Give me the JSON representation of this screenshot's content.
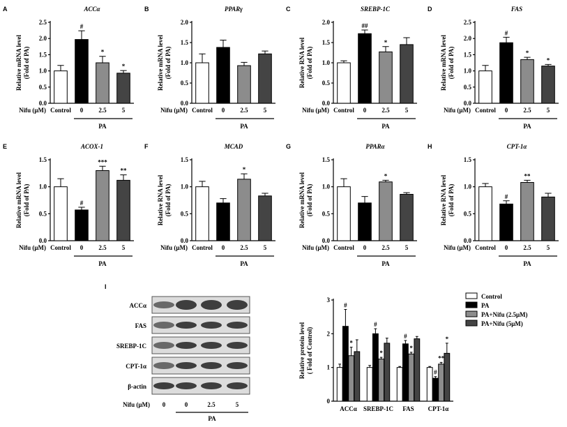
{
  "chart_data": [
    {
      "type": "bar",
      "panel": "A",
      "title": "ACCα",
      "y_label": [
        "Relative mRNA level",
        "(Fold of PA)"
      ],
      "x_label": "Nifu (μM)",
      "group_label": "PA",
      "categories": [
        "Control",
        "0",
        "2.5",
        "5"
      ],
      "values": [
        1.0,
        1.97,
        1.25,
        0.93
      ],
      "errors": [
        0.17,
        0.27,
        0.2,
        0.08
      ],
      "annotations": [
        null,
        "#",
        "*",
        "*"
      ],
      "colors": [
        "#ffffff",
        "#000000",
        "#8c8c8c",
        "#444444"
      ],
      "ylim": [
        0,
        2.5
      ],
      "yticks": [
        {
          "value": 0,
          "label": "0.0"
        },
        0.5,
        {
          "value": 1,
          "label": "1.0"
        },
        1.5,
        {
          "value": 2,
          "label": "2.0"
        },
        2.5
      ]
    },
    {
      "type": "bar",
      "panel": "B",
      "title": "PPARγ",
      "y_label": [
        "Relative mRNA level",
        "(Fold of PA)"
      ],
      "x_label": "Nifu (μM)",
      "group_label": "PA",
      "categories": [
        "Control",
        "0",
        "2.5",
        "5"
      ],
      "values": [
        1.0,
        1.38,
        0.93,
        1.22
      ],
      "errors": [
        0.22,
        0.18,
        0.08,
        0.07
      ],
      "annotations": [
        null,
        null,
        null,
        null
      ],
      "colors": [
        "#ffffff",
        "#000000",
        "#8c8c8c",
        "#444444"
      ],
      "ylim": [
        0,
        2
      ],
      "yticks": [
        {
          "value": 0,
          "label": "0.0"
        },
        0.5,
        {
          "value": 1,
          "label": "1.0"
        },
        1.5,
        {
          "value": 2,
          "label": "2.0"
        }
      ]
    },
    {
      "type": "bar",
      "panel": "C",
      "title": "SREBP-1C",
      "y_label": [
        "Relative RNA level",
        "(Fold of PA)"
      ],
      "x_label": "Nifu (μM)",
      "group_label": "PA",
      "categories": [
        "Control",
        "0",
        "2.5",
        "5"
      ],
      "values": [
        1.0,
        1.72,
        1.27,
        1.45
      ],
      "errors": [
        0.05,
        0.09,
        0.13,
        0.17
      ],
      "annotations": [
        null,
        "##",
        "*",
        null
      ],
      "colors": [
        "#ffffff",
        "#000000",
        "#8c8c8c",
        "#444444"
      ],
      "ylim": [
        0,
        2
      ],
      "yticks": [
        {
          "value": 0,
          "label": "0.0"
        },
        0.5,
        {
          "value": 1,
          "label": "1.0"
        },
        1.5,
        {
          "value": 2,
          "label": "2.0"
        }
      ]
    },
    {
      "type": "bar",
      "panel": "D",
      "title": "FAS",
      "y_label": [
        "Relative mRNA level",
        "(Fold of PA)"
      ],
      "x_label": "Nifu (μM)",
      "group_label": "PA",
      "categories": [
        "Control",
        "0",
        "2.5",
        "5"
      ],
      "values": [
        1.0,
        1.87,
        1.35,
        1.15
      ],
      "errors": [
        0.17,
        0.17,
        0.07,
        0.05
      ],
      "annotations": [
        null,
        "#",
        "*",
        "*"
      ],
      "colors": [
        "#ffffff",
        "#000000",
        "#8c8c8c",
        "#444444"
      ],
      "ylim": [
        0,
        2.5
      ],
      "yticks": [
        {
          "value": 0,
          "label": "0.0"
        },
        0.5,
        {
          "value": 1,
          "label": "1.0"
        },
        1.5,
        {
          "value": 2,
          "label": "2.0"
        },
        2.5
      ]
    },
    {
      "type": "bar",
      "panel": "E",
      "title": "ACOX-1",
      "y_label": [
        "Relative mRNA level",
        "(Fold of PA)"
      ],
      "x_label": "Nifu (μM)",
      "group_label": "PA",
      "categories": [
        "Control",
        "0",
        "2.5",
        "5"
      ],
      "values": [
        1.0,
        0.57,
        1.3,
        1.12
      ],
      "errors": [
        0.15,
        0.05,
        0.08,
        0.1
      ],
      "annotations": [
        null,
        "#",
        "***",
        "**"
      ],
      "colors": [
        "#ffffff",
        "#000000",
        "#8c8c8c",
        "#444444"
      ],
      "ylim": [
        0,
        1.5
      ],
      "yticks": [
        {
          "value": 0,
          "label": "0.0"
        },
        0.5,
        {
          "value": 1,
          "label": "1.0"
        },
        1.5
      ]
    },
    {
      "type": "bar",
      "panel": "F",
      "title": "MCAD",
      "y_label": [
        "Relative RNA level",
        "(Fold of PA)"
      ],
      "x_label": "Nifu (μM)",
      "group_label": "PA",
      "categories": [
        "Control",
        "0",
        "2.5",
        "5"
      ],
      "values": [
        1.0,
        0.7,
        1.14,
        0.83
      ],
      "errors": [
        0.1,
        0.08,
        0.1,
        0.05
      ],
      "annotations": [
        null,
        null,
        "*",
        null
      ],
      "colors": [
        "#ffffff",
        "#000000",
        "#8c8c8c",
        "#444444"
      ],
      "ylim": [
        0,
        1.5
      ],
      "yticks": [
        {
          "value": 0,
          "label": "0.0"
        },
        0.5,
        {
          "value": 1,
          "label": "1.0"
        },
        1.5
      ]
    },
    {
      "type": "bar",
      "panel": "G",
      "title": "PPARα",
      "y_label": [
        "Relative mRNA level",
        "(Fold of PA)"
      ],
      "x_label": "Nifu (μM)",
      "group_label": "PA",
      "categories": [
        "Control",
        "0",
        "2.5",
        "5"
      ],
      "values": [
        1.0,
        0.7,
        1.09,
        0.86
      ],
      "errors": [
        0.15,
        0.12,
        0.03,
        0.03
      ],
      "annotations": [
        null,
        null,
        "*",
        null
      ],
      "colors": [
        "#ffffff",
        "#000000",
        "#8c8c8c",
        "#444444"
      ],
      "ylim": [
        0,
        1.5
      ],
      "yticks": [
        {
          "value": 0,
          "label": "0.0"
        },
        0.5,
        {
          "value": 1,
          "label": "1.0"
        },
        1.5
      ]
    },
    {
      "type": "bar",
      "panel": "H",
      "title": "CPT-1α",
      "y_label": [
        "Relative RNA level",
        "(Fold of PA)"
      ],
      "x_label": "Nifu (μM)",
      "group_label": "PA",
      "categories": [
        "Control",
        "0",
        "2.5",
        "5"
      ],
      "values": [
        1.0,
        0.68,
        1.08,
        0.81
      ],
      "errors": [
        0.06,
        0.06,
        0.04,
        0.07
      ],
      "annotations": [
        null,
        "#",
        "**",
        null
      ],
      "colors": [
        "#ffffff",
        "#000000",
        "#8c8c8c",
        "#444444"
      ],
      "ylim": [
        0,
        1.5
      ],
      "yticks": [
        {
          "value": 0,
          "label": "0.0"
        },
        0.5,
        {
          "value": 1,
          "label": "1.0"
        },
        1.5
      ]
    },
    {
      "type": "grouped",
      "y_label": [
        "Relative protein level",
        "( Fold of Control)"
      ],
      "categories": [
        "ACCα",
        "SREBP-1C",
        "FAS",
        "CPT-1α"
      ],
      "series": [
        {
          "name": "Control",
          "color": "#ffffff",
          "values": [
            1.0,
            1.0,
            1.0,
            1.0
          ],
          "errors": [
            0.1,
            0.06,
            0.03,
            0.03
          ],
          "annotations": [
            null,
            null,
            null,
            null
          ]
        },
        {
          "name": "PA",
          "color": "#000000",
          "values": [
            2.22,
            2.0,
            1.7,
            0.68
          ],
          "errors": [
            0.5,
            0.15,
            0.1,
            0.05
          ],
          "annotations": [
            "#",
            "#",
            "#",
            "#"
          ]
        },
        {
          "name": "PA+Nifu (2.5μM)",
          "color": "#8c8c8c",
          "values": [
            1.35,
            1.25,
            1.4,
            1.1
          ],
          "errors": [
            0.25,
            0.05,
            0.05,
            0.05
          ],
          "annotations": [
            "*",
            "*",
            "*",
            "**"
          ]
        },
        {
          "name": "PA+Nifu (5μM)",
          "color": "#444444",
          "values": [
            1.47,
            1.72,
            1.85,
            1.42
          ],
          "errors": [
            0.35,
            0.15,
            0.07,
            0.3
          ],
          "annotations": [
            null,
            null,
            null,
            "*"
          ]
        }
      ],
      "ylim": [
        0,
        3
      ],
      "yticks": [
        0,
        1,
        2,
        3
      ]
    }
  ],
  "blot": {
    "panel": "I",
    "rows": [
      "ACCα",
      "FAS",
      "SREBP-1C",
      "CPT-1α",
      "β-actin"
    ],
    "x_label": "Nifu (μM)",
    "lanes": [
      "0",
      "0",
      "2.5",
      "5"
    ],
    "group_label": "PA"
  }
}
